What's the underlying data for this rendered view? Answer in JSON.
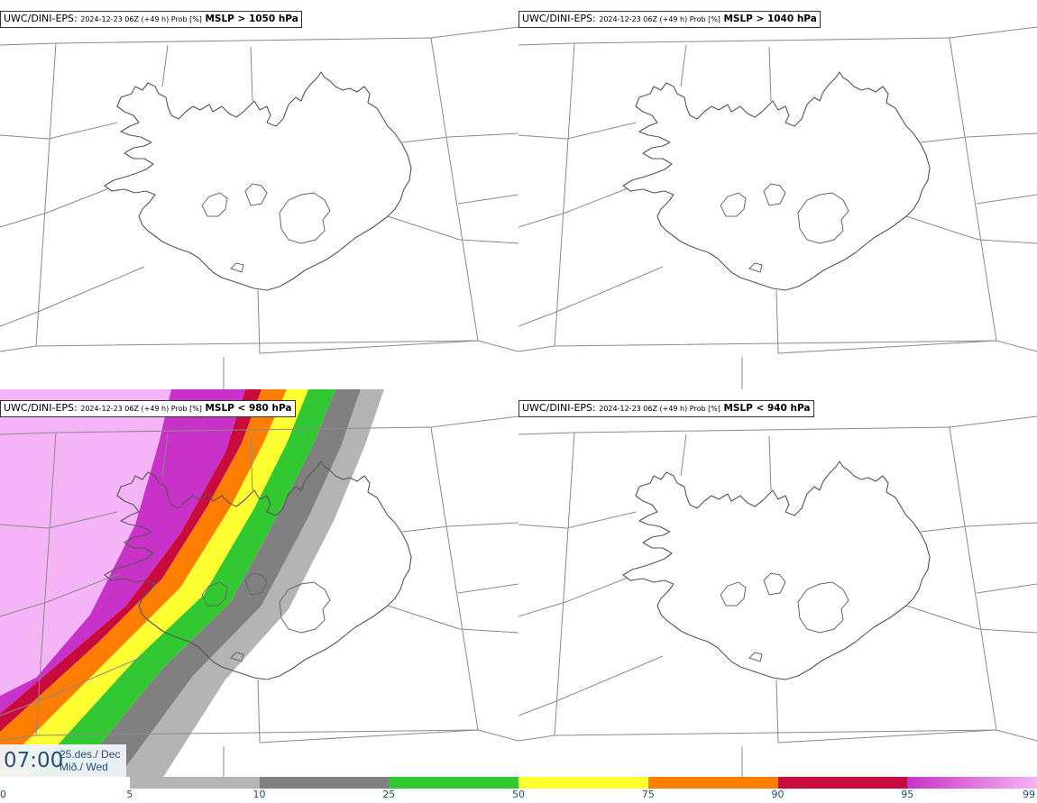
{
  "panels": [
    {
      "source": "UWC/DINI-EPS",
      "run_info": "2024-12-23 06Z (+49 h) Prob [%]",
      "variable": "MSLP > 1050 hPa"
    },
    {
      "source": "UWC/DINI-EPS",
      "run_info": "2024-12-23 06Z (+49 h) Prob [%]",
      "variable": "MSLP > 1040 hPa"
    },
    {
      "source": "UWC/DINI-EPS",
      "run_info": "2024-12-23 06Z (+49 h) Prob [%]",
      "variable": "MSLP < 980 hPa"
    },
    {
      "source": "UWC/DINI-EPS",
      "run_info": "2024-12-23 06Z (+49 h) Prob [%]",
      "variable": "MSLP < 940 hPa"
    }
  ],
  "valid_time": {
    "hour": "07:00",
    "date": "25.des./ Dec",
    "weekday": "Mið./ Wed"
  },
  "legend": {
    "ticks": [
      "0",
      "5",
      "10",
      "25",
      "50",
      "75",
      "90",
      "95",
      "99"
    ],
    "colors": [
      "#ffffff",
      "#b4b4b4",
      "#808080",
      "#32c832",
      "#ffff32",
      "#ff7d00",
      "#c80a3c",
      "#c832c8",
      "#f5b4f5"
    ]
  }
}
